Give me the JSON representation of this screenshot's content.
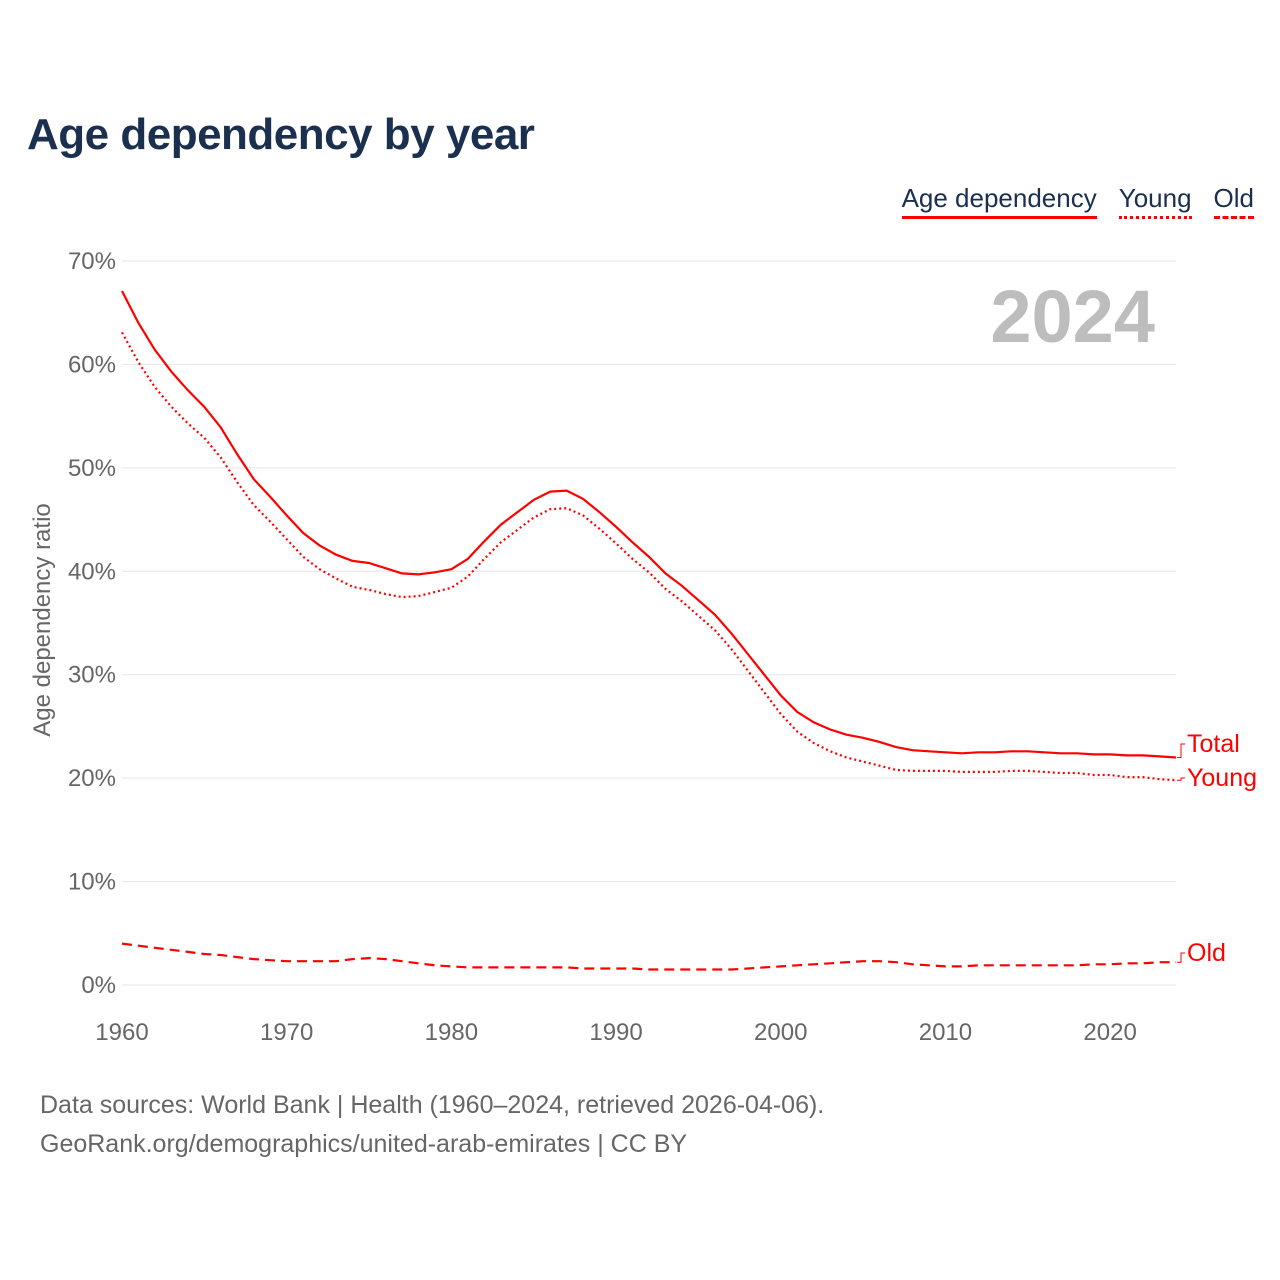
{
  "chart_data": {
    "type": "line",
    "title": "Age dependency by year",
    "ylabel": "Age dependency ratio",
    "xlabel": "",
    "year_label": "2024",
    "ylim": [
      0,
      70
    ],
    "xlim": [
      1960,
      2024
    ],
    "grid": true,
    "legend_placement": "top-right",
    "x_ticks": [
      1960,
      1970,
      1980,
      1990,
      2000,
      2010,
      2020
    ],
    "y_ticks": [
      0,
      10,
      20,
      30,
      40,
      50,
      60,
      70
    ],
    "y_tick_labels": [
      "0%",
      "10%",
      "20%",
      "30%",
      "40%",
      "50%",
      "60%",
      "70%"
    ],
    "x_tick_labels": [
      "1960",
      "1970",
      "1980",
      "1990",
      "2000",
      "2010",
      "2020"
    ],
    "legend": [
      {
        "label": "Age dependency",
        "style": "solid"
      },
      {
        "label": "Young",
        "style": "dotted"
      },
      {
        "label": "Old",
        "style": "dashed"
      }
    ],
    "x_start": 1960,
    "series": [
      {
        "name": "Total",
        "end_label": "Total",
        "style": "solid",
        "color": "#ff0000",
        "values": [
          67.1,
          64.0,
          61.4,
          59.3,
          57.5,
          55.9,
          53.9,
          51.3,
          48.9,
          47.2,
          45.4,
          43.7,
          42.5,
          41.6,
          41.0,
          40.8,
          40.3,
          39.8,
          39.7,
          39.9,
          40.2,
          41.2,
          42.9,
          44.5,
          45.7,
          46.9,
          47.7,
          47.8,
          47.0,
          45.7,
          44.3,
          42.8,
          41.4,
          39.8,
          38.6,
          37.2,
          35.8,
          34.0,
          32.0,
          30.0,
          28.0,
          26.4,
          25.4,
          24.7,
          24.2,
          23.9,
          23.5,
          23.0,
          22.7,
          22.6,
          22.5,
          22.4,
          22.5,
          22.5,
          22.6,
          22.6,
          22.5,
          22.4,
          22.4,
          22.3,
          22.3,
          22.2,
          22.2,
          22.1,
          22.0
        ]
      },
      {
        "name": "Young",
        "end_label": "Young",
        "style": "dotted",
        "color": "#ff0000",
        "values": [
          63.1,
          60.2,
          57.8,
          55.9,
          54.3,
          52.9,
          51.0,
          48.6,
          46.4,
          44.8,
          43.1,
          41.4,
          40.2,
          39.3,
          38.5,
          38.2,
          37.8,
          37.5,
          37.6,
          38.0,
          38.4,
          39.5,
          41.2,
          42.8,
          44.0,
          45.2,
          46.0,
          46.1,
          45.4,
          44.1,
          42.7,
          41.2,
          39.9,
          38.3,
          37.1,
          35.7,
          34.3,
          32.5,
          30.4,
          28.3,
          26.2,
          24.5,
          23.4,
          22.6,
          22.0,
          21.6,
          21.2,
          20.8,
          20.7,
          20.7,
          20.7,
          20.6,
          20.6,
          20.6,
          20.7,
          20.7,
          20.6,
          20.5,
          20.5,
          20.3,
          20.3,
          20.1,
          20.1,
          19.9,
          19.8
        ]
      },
      {
        "name": "Old",
        "end_label": "Old",
        "style": "dashed",
        "color": "#ff0000",
        "values": [
          4.0,
          3.8,
          3.6,
          3.4,
          3.2,
          3.0,
          2.9,
          2.7,
          2.5,
          2.4,
          2.3,
          2.3,
          2.3,
          2.3,
          2.5,
          2.6,
          2.5,
          2.3,
          2.1,
          1.9,
          1.8,
          1.7,
          1.7,
          1.7,
          1.7,
          1.7,
          1.7,
          1.7,
          1.6,
          1.6,
          1.6,
          1.6,
          1.5,
          1.5,
          1.5,
          1.5,
          1.5,
          1.5,
          1.6,
          1.7,
          1.8,
          1.9,
          2.0,
          2.1,
          2.2,
          2.3,
          2.3,
          2.2,
          2.0,
          1.9,
          1.8,
          1.8,
          1.9,
          1.9,
          1.9,
          1.9,
          1.9,
          1.9,
          1.9,
          2.0,
          2.0,
          2.1,
          2.1,
          2.2,
          2.2
        ]
      }
    ]
  },
  "footer": {
    "line1": "Data sources: World Bank | Health (1960–2024, retrieved 2026-04-06).",
    "line2": "GeoRank.org/demographics/united-arab-emirates | CC BY"
  }
}
